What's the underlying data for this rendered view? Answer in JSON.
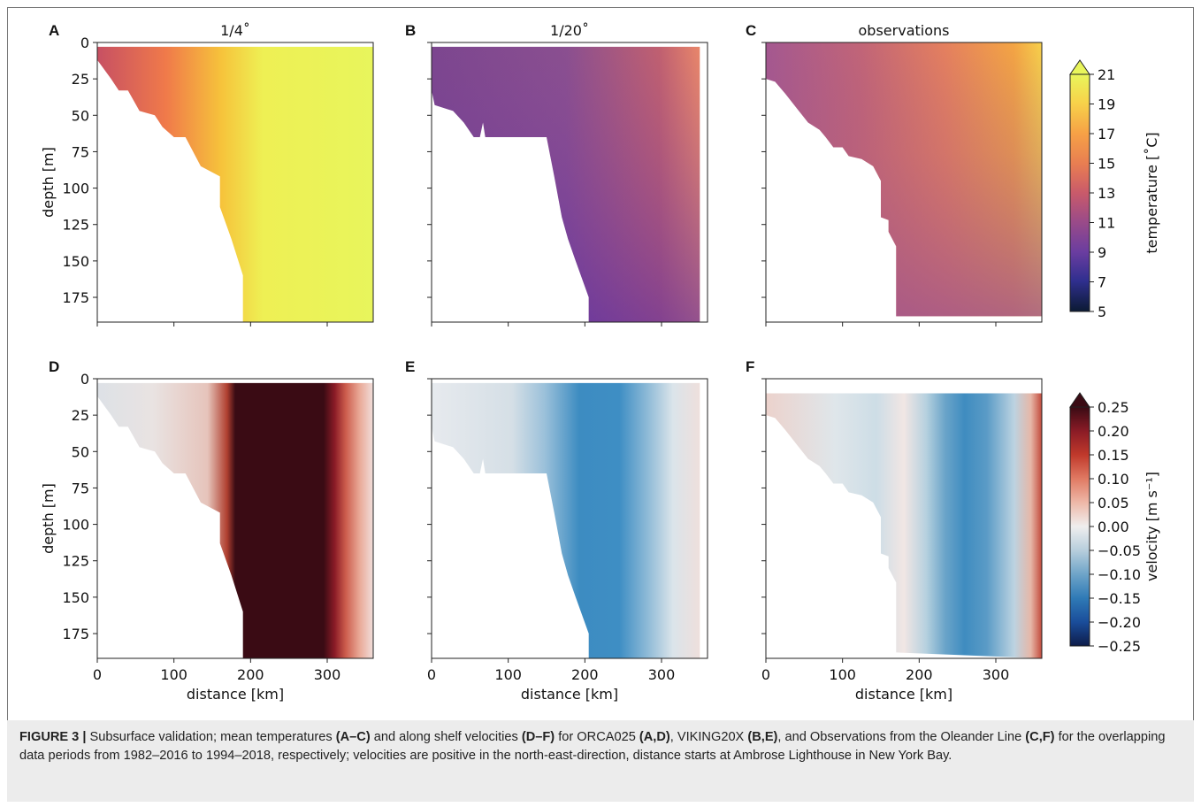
{
  "chart_data": {
    "panels": [
      {
        "id": "A",
        "title": "1/4˚",
        "type": "contour",
        "variable": "temperature",
        "xlim": [
          0,
          360
        ],
        "ylim": [
          192,
          0
        ],
        "yticks": [
          "0",
          "25",
          "50",
          "75",
          "100",
          "125",
          "150",
          "175"
        ],
        "xticks": [],
        "ylabel": "depth [m]",
        "xlabel": ""
      },
      {
        "id": "B",
        "title": "1/20˚",
        "type": "contour",
        "variable": "temperature",
        "xlim": [
          0,
          360
        ],
        "ylim": [
          192,
          0
        ],
        "yticks": [],
        "xticks": [],
        "ylabel": "",
        "xlabel": ""
      },
      {
        "id": "C",
        "title": "observations",
        "type": "contour",
        "variable": "temperature",
        "xlim": [
          0,
          360
        ],
        "ylim": [
          192,
          0
        ],
        "yticks": [],
        "xticks": [],
        "ylabel": "",
        "xlabel": ""
      },
      {
        "id": "D",
        "title": "",
        "type": "contour",
        "variable": "velocity",
        "xlim": [
          0,
          360
        ],
        "ylim": [
          192,
          0
        ],
        "yticks": [
          "0",
          "25",
          "50",
          "75",
          "100",
          "125",
          "150",
          "175"
        ],
        "xticks": [
          "0",
          "100",
          "200",
          "300"
        ],
        "ylabel": "depth [m]",
        "xlabel": "distance [km]"
      },
      {
        "id": "E",
        "title": "",
        "type": "contour",
        "variable": "velocity",
        "xlim": [
          0,
          360
        ],
        "ylim": [
          192,
          0
        ],
        "yticks": [],
        "xticks": [
          "0",
          "100",
          "200",
          "300"
        ],
        "ylabel": "",
        "xlabel": "distance [km]"
      },
      {
        "id": "F",
        "title": "",
        "type": "contour",
        "variable": "velocity",
        "xlim": [
          0,
          360
        ],
        "ylim": [
          192,
          0
        ],
        "yticks": [],
        "xticks": [
          "0",
          "100",
          "200",
          "300"
        ],
        "ylabel": "",
        "xlabel": "distance [km]"
      }
    ],
    "colorbars": [
      {
        "label": "temperature [˚C]",
        "ticks": [
          "21",
          "19",
          "17",
          "15",
          "13",
          "11",
          "9",
          "7",
          "5"
        ],
        "range": [
          5,
          21
        ]
      },
      {
        "label": "velocity [m s⁻¹]",
        "ticks": [
          "0.25",
          "0.20",
          "0.15",
          "0.10",
          "0.05",
          "0.00",
          "−0.05",
          "−0.10",
          "−0.15",
          "−0.20",
          "−0.25"
        ],
        "range": [
          -0.25,
          0.25
        ]
      }
    ]
  },
  "caption": {
    "figure_label": "FIGURE 3 |",
    "t1": " Subsurface validation; mean temperatures ",
    "b1": "(A–C)",
    "t2": " and along shelf velocities ",
    "b2": "(D–F)",
    "t3": " for ORCA025 ",
    "b3": "(A,D)",
    "t4": ", VIKING20X ",
    "b4": "(B,E)",
    "t5": ", and Observations from the Oleander Line ",
    "b5": "(C,F)",
    "t6": " for the overlapping data periods from 1982–2016 to 1994–2018, respectively; velocities are positive in the north-east-direction, distance starts at Ambrose Lighthouse in New York Bay."
  }
}
